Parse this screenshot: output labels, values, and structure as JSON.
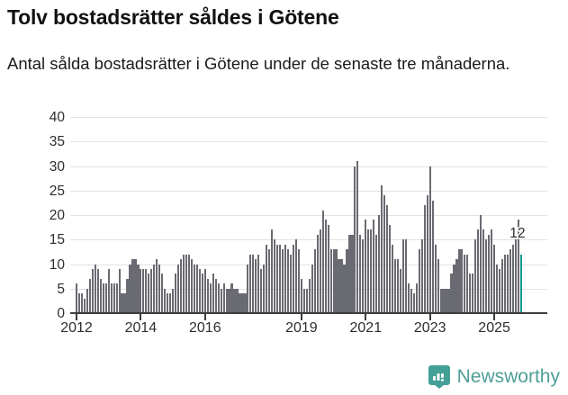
{
  "title": "Tolv bostadsrätter såldes i Götene",
  "subtitle": "Antal sålda bostadsrätter i Götene under de senaste tre månaderna.",
  "annotation": {
    "last_value_label": "12"
  },
  "footer": {
    "brand": "Newsworthy"
  },
  "colors": {
    "bar": "#6a6a72",
    "highlight": "#129a90",
    "grid": "#e2e2e2",
    "axis": "#3d3d3d",
    "brand": "#4f9e98"
  },
  "chart_data": {
    "type": "bar",
    "title": "Tolv bostadsrätter såldes i Götene",
    "subtitle": "Antal sålda bostadsrätter i Götene under de senaste tre månaderna.",
    "x_start": "2012-01",
    "x_end": "2025-11",
    "x_unit": "month",
    "ylim": [
      0,
      40
    ],
    "yticks": [
      0,
      5,
      10,
      15,
      20,
      25,
      30,
      35,
      40
    ],
    "grid": true,
    "legend": false,
    "xticks": [
      {
        "label": "2012",
        "month_index": 0
      },
      {
        "label": "2014",
        "month_index": 24
      },
      {
        "label": "2016",
        "month_index": 48
      },
      {
        "label": "2019",
        "month_index": 84
      },
      {
        "label": "2021",
        "month_index": 108
      },
      {
        "label": "2023",
        "month_index": 132
      },
      {
        "label": "2025",
        "month_index": 156
      }
    ],
    "values": [
      6,
      4,
      4,
      3,
      5,
      7,
      9,
      10,
      9,
      7,
      6,
      6,
      9,
      6,
      6,
      6,
      9,
      4,
      4,
      7,
      10,
      11,
      11,
      10,
      9,
      9,
      9,
      8,
      9,
      10,
      11,
      10,
      8,
      5,
      4,
      4,
      5,
      8,
      10,
      11,
      12,
      12,
      12,
      11,
      10,
      10,
      9,
      8,
      9,
      7,
      6,
      8,
      7,
      6,
      5,
      6,
      5,
      5,
      6,
      5,
      5,
      4,
      4,
      4,
      10,
      12,
      12,
      11,
      12,
      9,
      10,
      14,
      13,
      17,
      15,
      14,
      14,
      13,
      14,
      13,
      12,
      14,
      15,
      13,
      7,
      5,
      5,
      7,
      10,
      13,
      16,
      17,
      21,
      19,
      18,
      13,
      13,
      13,
      11,
      11,
      10,
      13,
      16,
      16,
      30,
      31,
      16,
      15,
      19,
      17,
      17,
      19,
      16,
      20,
      26,
      24,
      22,
      18,
      14,
      11,
      11,
      9,
      15,
      15,
      6,
      5,
      4,
      6,
      13,
      15,
      22,
      24,
      30,
      23,
      14,
      11,
      5,
      5,
      5,
      5,
      8,
      10,
      11,
      13,
      13,
      12,
      12,
      8,
      8,
      15,
      17,
      20,
      17,
      15,
      16,
      17,
      14,
      10,
      9,
      11,
      12,
      12,
      13,
      14,
      15,
      19,
      12
    ],
    "highlight_last": true,
    "last_value": 12
  }
}
